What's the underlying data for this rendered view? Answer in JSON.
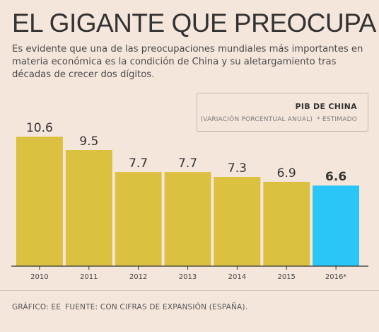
{
  "header": {
    "title": "EL GIGANTE QUE PREOCUPA",
    "subtitle": "Es evidente que una de las preocupaciones mundiales más importantes en materia económica es la condición de China y su aletargamiento tras décadas de crecer dos dígitos."
  },
  "legend": {
    "title": "PIB DE CHINA",
    "unit": "(VARIACIÓN PORCENTUAL ANUAL)",
    "note": "* ESTIMADO"
  },
  "footer": {
    "credit": "GRÁFICO: EE",
    "source": "FUENTE: CON CIFRAS DE EXPANSIÓN (ESPAÑA)."
  },
  "colors": {
    "background": "#f5e6dc",
    "bar": "#dcc040",
    "highlight": "#29c6f7",
    "axis": "#333333"
  },
  "chart_data": {
    "type": "bar",
    "title": "PIB DE CHINA",
    "subtitle": "(VARIACIÓN PORCENTUAL ANUAL)",
    "categories": [
      "2010",
      "2011",
      "2012",
      "2013",
      "2014",
      "2015",
      "2016*"
    ],
    "values": [
      10.6,
      9.5,
      7.7,
      7.7,
      7.3,
      6.9,
      6.6
    ],
    "value_labels": [
      "10.6",
      "9.5",
      "7.7",
      "7.7",
      "7.3",
      "6.9",
      "6.6"
    ],
    "highlight": "2016*",
    "ylim": [
      0,
      10.6
    ],
    "grid": false,
    "legend": "top-right"
  }
}
